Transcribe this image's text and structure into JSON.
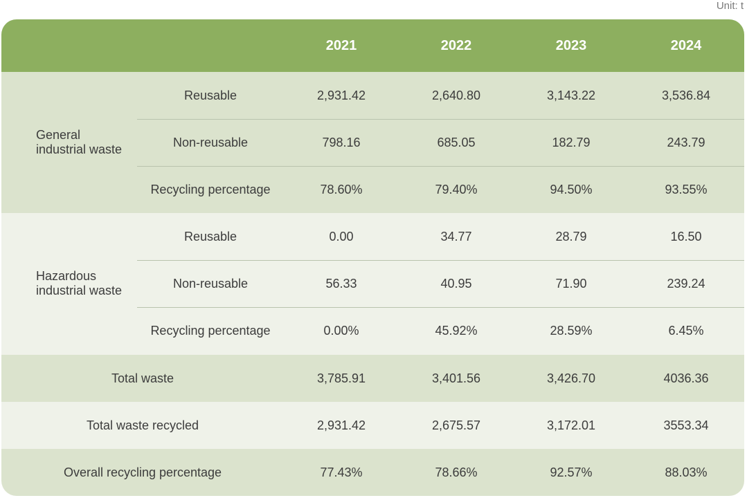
{
  "unit": "Unit: t",
  "years": [
    "2021",
    "2022",
    "2023",
    "2024"
  ],
  "groups": [
    {
      "label_line1": "General",
      "label_line2": "industrial waste",
      "rows": [
        {
          "label": "Reusable",
          "values": [
            "2,931.42",
            "2,640.80",
            "3,143.22",
            "3,536.84"
          ]
        },
        {
          "label": "Non-reusable",
          "values": [
            "798.16",
            "685.05",
            "182.79",
            "243.79"
          ]
        },
        {
          "label": "Recycling percentage",
          "values": [
            "78.60%",
            "79.40%",
            "94.50%",
            "93.55%"
          ]
        }
      ]
    },
    {
      "label_line1": "Hazardous",
      "label_line2": "industrial waste",
      "rows": [
        {
          "label": "Reusable",
          "values": [
            "0.00",
            "34.77",
            "28.79",
            "16.50"
          ]
        },
        {
          "label": "Non-reusable",
          "values": [
            "56.33",
            "40.95",
            "71.90",
            "239.24"
          ]
        },
        {
          "label": "Recycling percentage",
          "values": [
            "0.00%",
            "45.92%",
            "28.59%",
            "6.45%"
          ]
        }
      ]
    }
  ],
  "totals": [
    {
      "label": "Total waste",
      "values": [
        "3,785.91",
        "3,401.56",
        "3,426.70",
        "4036.36"
      ]
    },
    {
      "label": "Total waste recycled",
      "values": [
        "2,931.42",
        "2,675.57",
        "3,172.01",
        "3553.34"
      ]
    },
    {
      "label": "Overall recycling percentage",
      "values": [
        "77.43%",
        "78.66%",
        "92.57%",
        "88.03%"
      ]
    }
  ],
  "colors": {
    "header": "#8daf5f",
    "band_dark": "#dbe3cd",
    "band_light": "#eff2e9",
    "divider": "#b9c3ad",
    "text": "#3c3c3c"
  }
}
